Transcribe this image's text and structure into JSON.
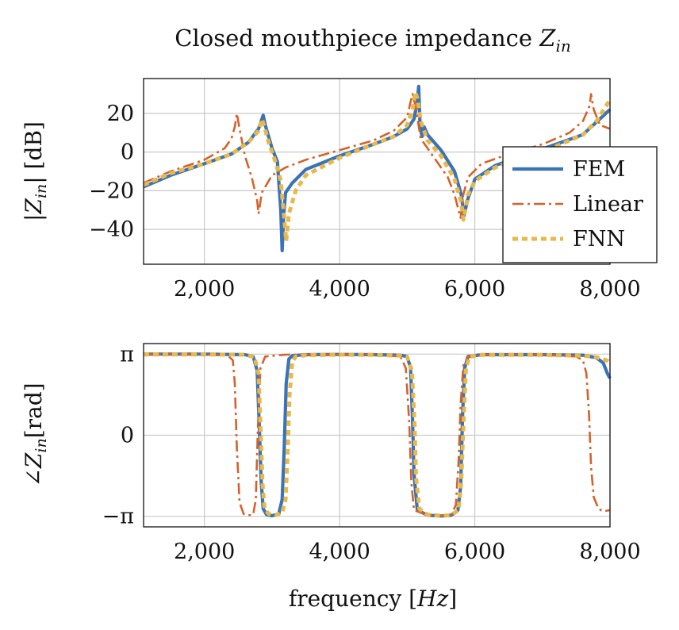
{
  "chart_data": [
    {
      "type": "line",
      "title": "Closed mouthpiece impedance Z_in",
      "ylabel": "|Z_in| [dB]",
      "xlim": [
        1100,
        8000
      ],
      "ylim": [
        -58,
        38
      ],
      "xticks": [
        2000,
        4000,
        6000,
        8000
      ],
      "xtick_labels": [
        "2,000",
        "4,000",
        "6,000",
        "8,000"
      ],
      "yticks": [
        20,
        0,
        -20,
        -40
      ],
      "ytick_labels": [
        "20",
        "0",
        "−20",
        "−40"
      ],
      "grid": true,
      "legend_position": "right",
      "series": [
        {
          "name": "FEM",
          "color": "#3a73b8",
          "style": "solid",
          "x": [
            1100,
            1500,
            2000,
            2400,
            2650,
            2800,
            2870,
            2900,
            3000,
            3080,
            3130,
            3150,
            3170,
            3200,
            3300,
            3500,
            4000,
            4500,
            4800,
            5000,
            5100,
            5150,
            5170,
            5190,
            5220,
            5250,
            5300,
            5500,
            5700,
            5800,
            5840,
            5860,
            5900,
            6000,
            6300,
            6700,
            7200,
            7600,
            8000
          ],
          "y": [
            -18,
            -12,
            -6,
            -1,
            5,
            12,
            19,
            14,
            2,
            -5,
            -30,
            -51,
            -34,
            -21,
            -16,
            -9,
            -2,
            4,
            8,
            12,
            17,
            26,
            34,
            14,
            8,
            13,
            9,
            1,
            -10,
            -22,
            -33,
            -30,
            -24,
            -14,
            -7,
            -2,
            4,
            9,
            22
          ]
        },
        {
          "name": "Linear",
          "color": "#d4622a",
          "style": "dashdot",
          "x": [
            1100,
            1500,
            2000,
            2300,
            2400,
            2450,
            2480,
            2520,
            2600,
            2700,
            2780,
            2800,
            2850,
            3000,
            3200,
            3500,
            4000,
            4500,
            4800,
            5000,
            5050,
            5080,
            5120,
            5200,
            5400,
            5600,
            5700,
            5760,
            5790,
            5830,
            5900,
            6100,
            6500,
            7000,
            7400,
            7600,
            7700,
            7720,
            7760,
            7850,
            8000
          ],
          "y": [
            -16,
            -10,
            -4,
            2,
            7,
            13,
            20,
            12,
            -2,
            -13,
            -25,
            -32,
            -21,
            -12,
            -8,
            -4,
            1,
            6,
            11,
            18,
            26,
            30,
            24,
            7,
            -3,
            -13,
            -22,
            -30,
            -34,
            -22,
            -13,
            -6,
            -1,
            4,
            10,
            16,
            24,
            30,
            22,
            14,
            12
          ]
        },
        {
          "name": "FNN",
          "color": "#e8b84a",
          "style": "dotted",
          "x": [
            1100,
            1500,
            2000,
            2400,
            2650,
            2800,
            2850,
            2880,
            2950,
            3050,
            3130,
            3180,
            3210,
            3250,
            3350,
            3500,
            4000,
            4500,
            4800,
            5000,
            5080,
            5120,
            5150,
            5200,
            5300,
            5500,
            5700,
            5800,
            5830,
            5860,
            5900,
            6000,
            6300,
            6700,
            7200,
            7600,
            7800,
            8000
          ],
          "y": [
            -17,
            -11,
            -6,
            -1,
            5,
            11,
            17,
            14,
            5,
            -5,
            -15,
            -34,
            -46,
            -32,
            -20,
            -12,
            -3,
            4,
            8,
            14,
            22,
            31,
            28,
            16,
            6,
            -2,
            -14,
            -26,
            -35,
            -30,
            -22,
            -15,
            -8,
            -3,
            3,
            9,
            16,
            27
          ]
        }
      ]
    },
    {
      "type": "line",
      "title": "",
      "xlabel": "frequency [Hz]",
      "ylabel": "∠Z_in [rad]",
      "xlim": [
        1100,
        8000
      ],
      "ylim": [
        -3.55,
        3.55
      ],
      "xticks": [
        2000,
        4000,
        6000,
        8000
      ],
      "xtick_labels": [
        "2,000",
        "4,000",
        "6,000",
        "8,000"
      ],
      "yticks": [
        3.14159,
        0,
        -3.14159
      ],
      "ytick_labels": [
        "π",
        "0",
        "−π"
      ],
      "grid": true,
      "series": [
        {
          "name": "FEM",
          "color": "#3a73b8",
          "style": "solid",
          "x": [
            1100,
            2000,
            2600,
            2720,
            2780,
            2810,
            2840,
            2870,
            2920,
            3000,
            3100,
            3150,
            3180,
            3210,
            3250,
            3300,
            3500,
            4000,
            4500,
            4900,
            5000,
            5050,
            5080,
            5100,
            5150,
            5300,
            5500,
            5650,
            5750,
            5790,
            5820,
            5850,
            5900,
            6100,
            7000,
            7600,
            7800,
            7900,
            7960,
            8000
          ],
          "y": [
            3.14,
            3.14,
            3.12,
            3.05,
            2.5,
            0.5,
            -1.8,
            -2.85,
            -3.08,
            -3.12,
            -3.05,
            -2.5,
            -0.5,
            2.0,
            2.95,
            3.08,
            3.12,
            3.13,
            3.12,
            3.1,
            3.05,
            2.6,
            0.5,
            -1.5,
            -2.9,
            -3.1,
            -3.13,
            -3.1,
            -2.9,
            -2.0,
            0.8,
            2.6,
            3.05,
            3.12,
            3.12,
            3.1,
            3.0,
            2.8,
            2.4,
            2.2
          ]
        },
        {
          "name": "Linear",
          "color": "#d4622a",
          "style": "dashdot",
          "x": [
            1100,
            2000,
            2350,
            2420,
            2450,
            2480,
            2520,
            2580,
            2650,
            2720,
            2760,
            2790,
            2830,
            2900,
            3200,
            4000,
            4500,
            4900,
            4980,
            5030,
            5060,
            5100,
            5300,
            5500,
            5650,
            5720,
            5760,
            5790,
            5830,
            5900,
            6200,
            7000,
            7500,
            7600,
            7650,
            7690,
            7720,
            7760,
            7830,
            7900,
            8000
          ],
          "y": [
            3.14,
            3.13,
            3.08,
            2.9,
            2.0,
            -0.5,
            -2.6,
            -3.05,
            -3.1,
            -3.08,
            -2.5,
            0.2,
            2.6,
            3.05,
            3.12,
            3.13,
            3.12,
            3.05,
            2.6,
            0.5,
            -1.8,
            -2.9,
            -3.1,
            -3.12,
            -3.1,
            -2.7,
            -1.0,
            1.2,
            2.7,
            3.05,
            3.12,
            3.12,
            3.05,
            2.9,
            2.4,
            0.8,
            -1.2,
            -2.4,
            -2.85,
            -2.95,
            -2.9
          ]
        },
        {
          "name": "FNN",
          "color": "#e8b84a",
          "style": "dotted",
          "x": [
            1100,
            2000,
            2600,
            2740,
            2800,
            2830,
            2860,
            2890,
            2950,
            3050,
            3150,
            3200,
            3230,
            3260,
            3300,
            3350,
            3500,
            4000,
            4500,
            4900,
            5000,
            5070,
            5110,
            5130,
            5180,
            5300,
            5500,
            5650,
            5760,
            5800,
            5840,
            5870,
            5920,
            6100,
            7000,
            7600,
            7800,
            7950,
            8000
          ],
          "y": [
            3.13,
            3.13,
            3.12,
            3.02,
            2.4,
            0.4,
            -1.9,
            -2.85,
            -3.05,
            -3.1,
            -3.0,
            -2.5,
            -0.8,
            1.6,
            2.85,
            3.05,
            3.1,
            3.12,
            3.11,
            3.08,
            3.03,
            2.5,
            0.4,
            -1.6,
            -2.85,
            -3.08,
            -3.12,
            -3.1,
            -2.9,
            -1.8,
            0.9,
            2.6,
            3.04,
            3.11,
            3.11,
            3.08,
            3.02,
            2.9,
            2.8
          ]
        }
      ]
    }
  ]
}
